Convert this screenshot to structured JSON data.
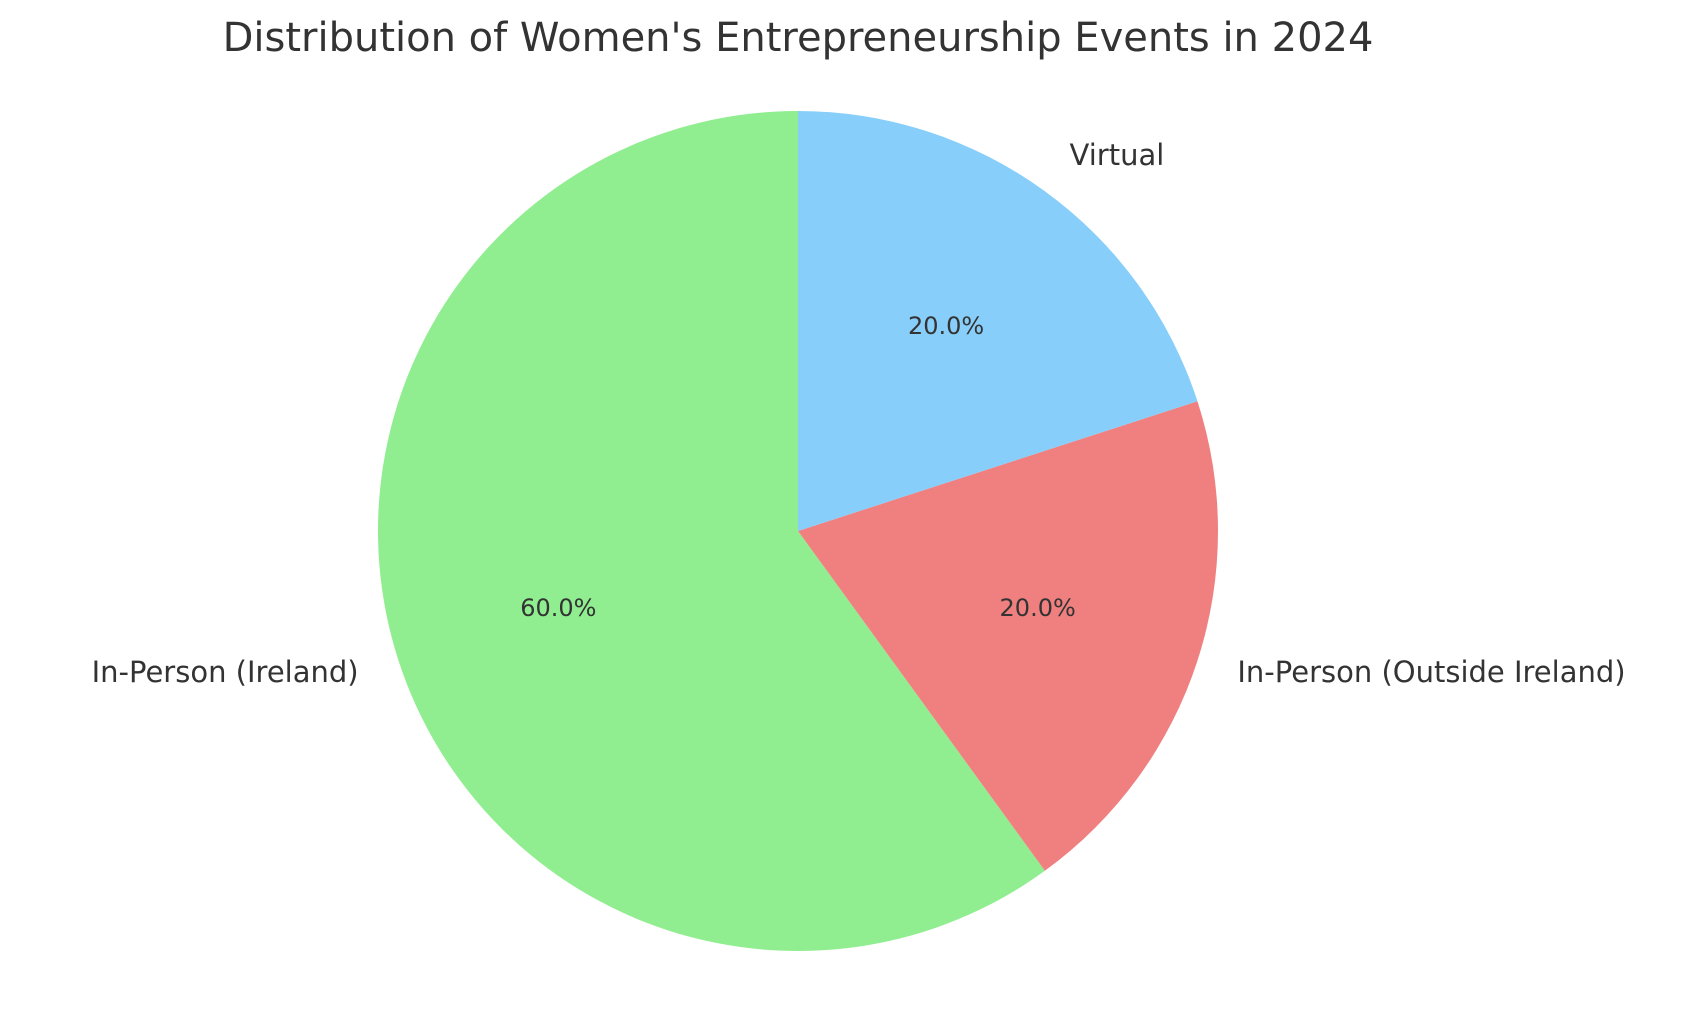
{
  "chart_data": {
    "type": "pie",
    "title": "Distribution of Women's Entrepreneurship Events in 2024",
    "categories": [
      "In-Person (Ireland)",
      "In-Person (Outside Ireland)",
      "Virtual"
    ],
    "values": [
      60,
      20,
      20
    ],
    "value_labels": [
      "60.0%",
      "20.0%",
      "20.0%"
    ],
    "colors": [
      "#90ee90",
      "#f08080",
      "#87cefa"
    ]
  }
}
